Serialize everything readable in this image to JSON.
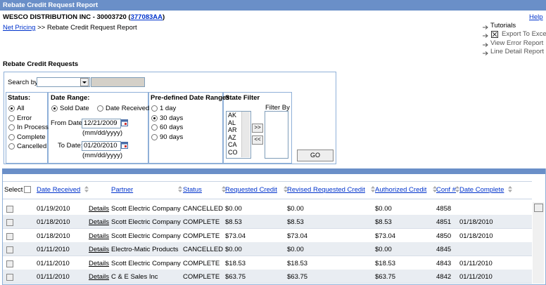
{
  "header": {
    "title": "Rebate Credit Request Report",
    "company_prefix": "WESCO DISTRIBUTION INC - 30003720 (",
    "account": "377083AA",
    "company_suffix": ")",
    "help": "Help"
  },
  "breadcrumb": {
    "link": "Net Pricing",
    "separator": ">>",
    "current": "Rebate Credit Request Report"
  },
  "side_links": [
    "Tutorials",
    "Export To Excel",
    "View Error Report",
    "Line Detail Report"
  ],
  "section_title": "Rebate Credit Requests",
  "filters": {
    "search_label": "Search by",
    "status": {
      "title": "Status:",
      "options": [
        "All",
        "Error",
        "In Process",
        "Complete",
        "Cancelled"
      ],
      "selected": 0
    },
    "date_range": {
      "title": "Date Range:",
      "options": [
        "Sold Date",
        "Date Received"
      ],
      "selected": 0,
      "from_label": "From Date:",
      "from_value": "12/21/2009",
      "to_label": "To Date:",
      "to_value": "01/20/2010",
      "format": "(mm/dd/yyyy)"
    },
    "predefined": {
      "title": "Pre-defined Date Ranges",
      "options": [
        "1 day",
        "30 days",
        "60 days",
        "90 days"
      ],
      "selected": 1
    },
    "state_filter": {
      "title": "State Filter",
      "states": [
        "AK",
        "AL",
        "AR",
        "AZ",
        "CA",
        "CO"
      ],
      "add": ">>",
      "remove": "<<",
      "filter_by": "Filter By"
    },
    "go": "GO"
  },
  "table": {
    "select_label": "Select",
    "columns": [
      "Date Received",
      "Partner",
      "Status",
      "Requested Credit",
      "Revised Requested Credit",
      "Authorized Credit",
      "Conf #",
      "Date Complete"
    ],
    "rows": [
      [
        "01/19/2010",
        "Details",
        "Scott Electric Company",
        "CANCELLED",
        "$0.00",
        "$0.00",
        "$0.00",
        "4858",
        null
      ],
      [
        "01/18/2010",
        "Details",
        "Scott Electric Company",
        "COMPLETE",
        "$8.53",
        "$8.53",
        "$8.53",
        "4851",
        "01/18/2010"
      ],
      [
        "01/18/2010",
        "Details",
        "Scott Electric Company",
        "COMPLETE",
        "$73.04",
        "$73.04",
        "$73.04",
        "4850",
        "01/18/2010"
      ],
      [
        "01/11/2010",
        "Details",
        "Electro-Matic Products",
        "CANCELLED",
        "$0.00",
        "$0.00",
        "$0.00",
        "4845",
        null
      ],
      [
        "01/11/2010",
        "Details",
        "Scott Electric Company",
        "COMPLETE",
        "$18.53",
        "$18.53",
        "$18.53",
        "4843",
        "01/11/2010"
      ],
      [
        "01/11/2010",
        "Details",
        "C & E Sales Inc",
        "COMPLETE",
        "$63.75",
        "$63.75",
        "$63.75",
        "4842",
        "01/11/2010"
      ]
    ]
  }
}
